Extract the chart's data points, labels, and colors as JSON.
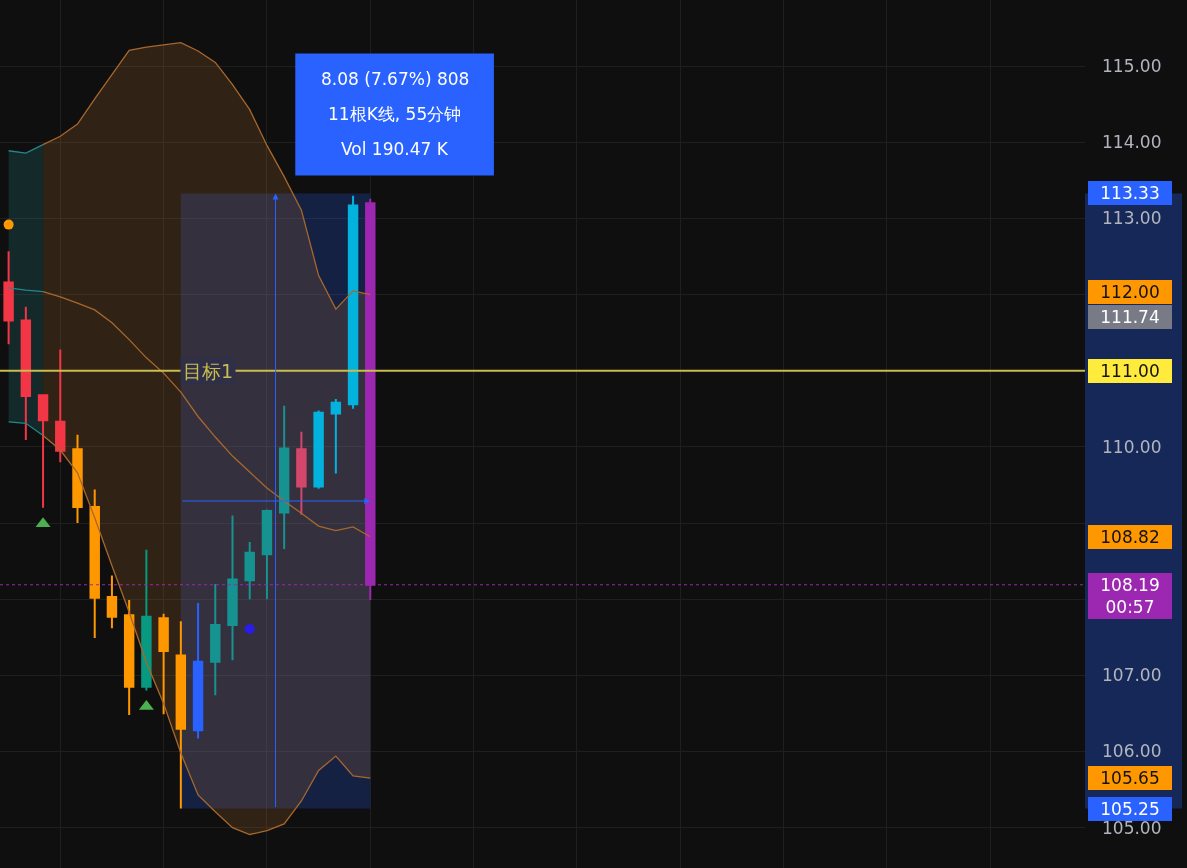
{
  "chart_data": {
    "type": "candlestick",
    "categories": [
      null,
      null,
      null,
      null,
      null,
      null,
      null,
      null,
      null,
      null,
      null,
      null,
      null,
      null,
      null,
      null,
      null,
      null,
      null,
      null,
      null,
      null,
      null,
      null,
      null,
      null,
      null,
      null,
      null,
      null,
      null,
      null,
      null,
      null,
      null,
      null,
      null,
      null,
      null,
      null,
      null,
      null,
      null,
      null,
      null,
      null,
      null,
      null,
      null,
      null,
      null,
      null,
      null,
      null,
      null,
      null,
      null,
      null,
      null,
      null,
      null,
      null,
      null
    ],
    "ohlc": [
      [
        112.16,
        112.57,
        111.35,
        111.66
      ],
      [
        111.66,
        111.84,
        110.09,
        110.67
      ],
      [
        110.68,
        110.69,
        109.2,
        110.35
      ],
      [
        110.33,
        111.28,
        109.8,
        109.95
      ],
      [
        109.97,
        110.16,
        109.0,
        109.21
      ],
      [
        109.21,
        109.44,
        107.49,
        108.02
      ],
      [
        108.03,
        108.31,
        107.62,
        107.77
      ],
      [
        107.79,
        107.99,
        106.48,
        106.85
      ],
      [
        106.85,
        108.65,
        106.8,
        107.77
      ],
      [
        107.75,
        107.81,
        106.49,
        107.32
      ],
      [
        107.26,
        107.71,
        105.25,
        106.3
      ],
      [
        106.28,
        107.95,
        106.17,
        107.18
      ],
      [
        107.18,
        108.2,
        106.74,
        107.66
      ],
      [
        107.66,
        109.1,
        107.2,
        108.26
      ],
      [
        108.25,
        108.75,
        108.0,
        108.61
      ],
      [
        108.59,
        109.18,
        108.0,
        109.16
      ],
      [
        109.14,
        110.54,
        108.66,
        109.98
      ],
      [
        109.97,
        110.2,
        109.11,
        109.48
      ],
      [
        109.48,
        110.48,
        109.45,
        110.45
      ],
      [
        110.44,
        110.63,
        109.65,
        110.58
      ],
      [
        110.56,
        113.3,
        110.5,
        113.17
      ],
      [
        113.2,
        113.26,
        107.99,
        108.19
      ],
      null,
      null,
      null,
      null,
      null,
      null,
      null,
      null,
      null,
      null,
      null,
      null,
      null,
      null,
      null,
      null,
      null,
      null,
      null,
      null,
      null,
      null,
      null,
      null,
      null,
      null,
      null,
      null,
      null,
      null,
      null,
      null,
      null,
      null,
      null,
      null,
      null,
      null,
      null,
      null,
      null
    ],
    "colors": [
      "#f23645",
      "#f23645",
      "#f23645",
      "#f23645",
      "#ff9800",
      "#ff9800",
      "#ff9800",
      "#ff9800",
      "#089981",
      "#ff9800",
      "#ff9800",
      "#2962ff",
      "#169391",
      "#169391",
      "#169391",
      "#169391",
      "#169391",
      "#d4466b",
      "#03b2dd",
      "#03b2dd",
      "#03b2dd",
      "#9c27b0",
      null,
      null,
      null,
      null,
      null,
      null,
      null,
      null,
      null,
      null,
      null,
      null,
      null,
      null,
      null,
      null,
      null,
      null,
      null,
      null,
      null,
      null,
      null,
      null,
      null,
      null,
      null,
      null,
      null,
      null,
      null,
      null,
      null,
      null,
      null,
      null,
      null,
      null,
      null,
      null,
      null
    ],
    "series": [
      {
        "type": "line",
        "color": "#26878b",
        "values": [
          113.89,
          113.86,
          113.97,
          null,
          null,
          null,
          null,
          null,
          null,
          null,
          null,
          null,
          null,
          null,
          null,
          null,
          null,
          null,
          null,
          null,
          null,
          null,
          null,
          null,
          null,
          null,
          null,
          null,
          null,
          null,
          null,
          null,
          null,
          null,
          null,
          null,
          null,
          null,
          null,
          null,
          null,
          null,
          null,
          null,
          null,
          null,
          null,
          null,
          null,
          null,
          null,
          null,
          null,
          null,
          null,
          null,
          null,
          null,
          null,
          null,
          null,
          null,
          null
        ]
      },
      {
        "type": "line",
        "color": "#26878b",
        "values": [
          112.09,
          112.06,
          112.04,
          null,
          null,
          null,
          null,
          null,
          null,
          null,
          null,
          null,
          null,
          null,
          null,
          null,
          null,
          null,
          null,
          null,
          null,
          null,
          null,
          null,
          null,
          null,
          null,
          null,
          null,
          null,
          null,
          null,
          null,
          null,
          null,
          null,
          null,
          null,
          null,
          null,
          null,
          null,
          null,
          null,
          null,
          null,
          null,
          null,
          null,
          null,
          null,
          null,
          null,
          null,
          null,
          null,
          null,
          null,
          null,
          null,
          null,
          null,
          null
        ],
        "upper": [
          113.89,
          113.86,
          113.97,
          null,
          null,
          null,
          null,
          null,
          null,
          null,
          null,
          null,
          null,
          null,
          null,
          null,
          null,
          null,
          null,
          null,
          null,
          null,
          null,
          null,
          null,
          null,
          null,
          null,
          null,
          null,
          null,
          null,
          null,
          null,
          null,
          null,
          null,
          null,
          null,
          null,
          null,
          null,
          null,
          null,
          null,
          null,
          null,
          null,
          null,
          null,
          null,
          null,
          null,
          null,
          null,
          null,
          null,
          null,
          null,
          null,
          null,
          null,
          null
        ],
        "lower": [
          110.33,
          110.31,
          110.15,
          null,
          null,
          null,
          null,
          null,
          null,
          null,
          null,
          null,
          null,
          null,
          null,
          null,
          null,
          null,
          null,
          null,
          null,
          null,
          null,
          null,
          null,
          null,
          null,
          null,
          null,
          null,
          null,
          null,
          null,
          null,
          null,
          null,
          null,
          null,
          null,
          null,
          null,
          null,
          null,
          null,
          null,
          null,
          null,
          null,
          null,
          null,
          null,
          null,
          null,
          null,
          null,
          null,
          null,
          null,
          null,
          null,
          null,
          null,
          null
        ]
      },
      {
        "type": "line",
        "color": "#26878b",
        "values": [
          110.33,
          110.31,
          110.15,
          null,
          null,
          null,
          null,
          null,
          null,
          null,
          null,
          null,
          null,
          null,
          null,
          null,
          null,
          null,
          null,
          null,
          null,
          null,
          null,
          null,
          null,
          null,
          null,
          null,
          null,
          null,
          null,
          null,
          null,
          null,
          null,
          null,
          null,
          null,
          null,
          null,
          null,
          null,
          null,
          null,
          null,
          null,
          null,
          null,
          null,
          null,
          null,
          null,
          null,
          null,
          null,
          null,
          null,
          null,
          null,
          null,
          null,
          null,
          null
        ]
      },
      {
        "type": "line",
        "color": "#a8672c",
        "values": [
          null,
          null,
          113.97,
          114.08,
          114.24,
          114.57,
          114.89,
          115.21,
          115.25,
          115.28,
          115.31,
          115.2,
          115.05,
          114.76,
          114.43,
          113.96,
          113.55,
          113.11,
          112.25,
          111.81,
          112.05,
          112.0,
          null,
          null,
          null,
          null,
          null,
          null,
          null,
          null,
          null,
          null,
          null,
          null,
          null,
          null,
          null,
          null,
          null,
          null,
          null,
          null,
          null,
          null,
          null,
          null,
          null,
          null,
          null,
          null,
          null,
          null,
          null,
          null,
          null,
          null,
          null,
          null,
          null,
          null,
          null,
          null,
          null
        ]
      },
      {
        "type": "line",
        "color": "#a8672c",
        "values": [
          null,
          null,
          112.04,
          111.97,
          111.89,
          111.8,
          111.63,
          111.41,
          111.17,
          110.97,
          110.72,
          110.4,
          110.13,
          109.88,
          109.67,
          109.46,
          109.29,
          109.13,
          108.96,
          108.9,
          108.95,
          108.82,
          null,
          null,
          null,
          null,
          null,
          null,
          null,
          null,
          null,
          null,
          null,
          null,
          null,
          null,
          null,
          null,
          null,
          null,
          null,
          null,
          null,
          null,
          null,
          null,
          null,
          null,
          null,
          null,
          null,
          null,
          null,
          null,
          null,
          null,
          null,
          null,
          null,
          null,
          null,
          null,
          null
        ],
        "upper": [
          null,
          null,
          113.97,
          114.08,
          114.24,
          114.57,
          114.89,
          115.21,
          115.25,
          115.28,
          115.31,
          115.2,
          115.05,
          114.76,
          114.43,
          113.96,
          113.55,
          113.11,
          112.25,
          111.81,
          112.05,
          112.0,
          null,
          null,
          null,
          null,
          null,
          null,
          null,
          null,
          null,
          null,
          null,
          null,
          null,
          null,
          null,
          null,
          null,
          null,
          null,
          null,
          null,
          null,
          null,
          null,
          null,
          null,
          null,
          null,
          null,
          null,
          null,
          null,
          null,
          null,
          null,
          null,
          null,
          null,
          null,
          null,
          null
        ],
        "lower": [
          null,
          null,
          110.15,
          109.96,
          109.66,
          109.07,
          108.44,
          107.83,
          107.17,
          106.63,
          105.98,
          105.43,
          105.21,
          105.0,
          104.91,
          104.96,
          105.05,
          105.35,
          105.75,
          105.94,
          105.68,
          105.65,
          null,
          null,
          null,
          null,
          null,
          null,
          null,
          null,
          null,
          null,
          null,
          null,
          null,
          null,
          null,
          null,
          null,
          null,
          null,
          null,
          null,
          null,
          null,
          null,
          null,
          null,
          null,
          null,
          null,
          null,
          null,
          null,
          null,
          null,
          null,
          null,
          null,
          null,
          null,
          null,
          null
        ]
      },
      {
        "type": "line",
        "color": "#a8672c",
        "values": [
          null,
          null,
          110.15,
          109.96,
          109.66,
          109.07,
          108.44,
          107.83,
          107.17,
          106.63,
          105.98,
          105.43,
          105.21,
          105.0,
          104.91,
          104.96,
          105.05,
          105.35,
          105.75,
          105.94,
          105.68,
          105.65,
          null,
          null,
          null,
          null,
          null,
          null,
          null,
          null,
          null,
          null,
          null,
          null,
          null,
          null,
          null,
          null,
          null,
          null,
          null,
          null,
          null,
          null,
          null,
          null,
          null,
          null,
          null,
          null,
          null,
          null,
          null,
          null,
          null,
          null,
          null,
          null,
          null,
          null,
          null,
          null,
          null
        ]
      },
      {
        "type": "scatter",
        "marker": "circle",
        "color": "#ff9800",
        "values": [
          112.92,
          null,
          null,
          null,
          null,
          null,
          null,
          null,
          null,
          null,
          null,
          null,
          null,
          null,
          null,
          null,
          null,
          null,
          null,
          null,
          null,
          null,
          null,
          null,
          null,
          null,
          null,
          null,
          null,
          null,
          null,
          null,
          null,
          null,
          null,
          null,
          null,
          null,
          null,
          null,
          null,
          null,
          null,
          null,
          null,
          null,
          null,
          null,
          null,
          null,
          null,
          null,
          null,
          null,
          null,
          null,
          null,
          null,
          null,
          null,
          null,
          null,
          null
        ]
      },
      {
        "type": "scatter",
        "marker": "triangle",
        "color": "#4caf50",
        "values": [
          null,
          null,
          108.99,
          null,
          null,
          null,
          null,
          null,
          106.59,
          null,
          null,
          null,
          null,
          null,
          null,
          null,
          null,
          null,
          null,
          null,
          null,
          null,
          null,
          null,
          null,
          null,
          null,
          null,
          null,
          null,
          null,
          null,
          null,
          null,
          null,
          null,
          null,
          null,
          null,
          null,
          null,
          null,
          null,
          null,
          null,
          null,
          null,
          null,
          null,
          null,
          null,
          null,
          null,
          null,
          null,
          null,
          null,
          null,
          null,
          null,
          null,
          null,
          null
        ]
      },
      {
        "type": "scatter",
        "marker": "circle",
        "color": "#2b1de8",
        "values": [
          null,
          null,
          null,
          null,
          null,
          null,
          null,
          null,
          null,
          null,
          null,
          null,
          null,
          null,
          107.61,
          null,
          null,
          null,
          null,
          null,
          null,
          null,
          null,
          null,
          null,
          null,
          null,
          null,
          null,
          null,
          null,
          null,
          null,
          null,
          null,
          null,
          null,
          null,
          null,
          null,
          null,
          null,
          null,
          null,
          null,
          null,
          null,
          null,
          null,
          null,
          null,
          null,
          null,
          null,
          null,
          null,
          null,
          null,
          null,
          null,
          null,
          null,
          null
        ]
      }
    ],
    "ylim": [
      104.47,
      115.87
    ],
    "yticks": [
      {
        "value": 105,
        "label": "105.00"
      },
      {
        "value": 106,
        "label": "106.00"
      },
      {
        "value": 107,
        "label": "107.00"
      },
      {
        "value": 108,
        "label": null
      },
      {
        "value": 109,
        "label": null
      },
      {
        "value": 110,
        "label": "110.00"
      },
      {
        "value": 111,
        "label": null
      },
      {
        "value": 112,
        "label": null
      },
      {
        "value": 113,
        "label": "113.00"
      },
      {
        "value": 114,
        "label": "114.00"
      },
      {
        "value": 115,
        "label": "115.00"
      }
    ],
    "ref_lines": [
      {
        "axis": "y",
        "value": 111.0,
        "label": "目标1",
        "color": "#c9bd4f",
        "line_style": "solid"
      },
      {
        "axis": "y",
        "value": 108.19,
        "color": "#9c27b0",
        "line_style": "dotted"
      }
    ],
    "bands": [
      {
        "axis": "y",
        "from": 105.25,
        "to": 113.33,
        "color": "#2962ff",
        "label": "8.08 (7.67%) 808\n11根K线, 55分钟\nVol 190.47 K"
      }
    ],
    "annotations": [
      "113.33",
      "112.00",
      "111.74",
      "111.00",
      "108.82",
      "108.19\n00:57",
      "105.65",
      "105.25"
    ],
    "grid": true,
    "tick_labels": "y"
  }
}
